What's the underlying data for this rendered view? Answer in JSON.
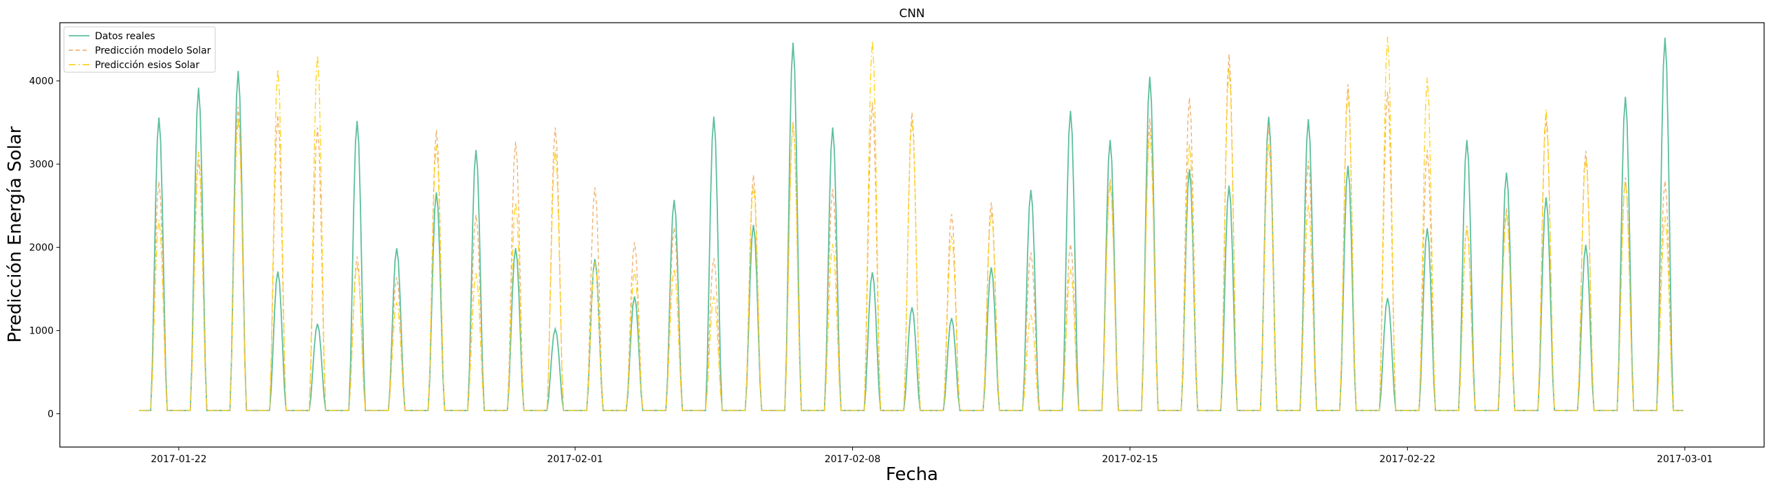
{
  "chart_data": {
    "type": "line",
    "title": "CNN",
    "xlabel": "Fecha",
    "ylabel": "Predicción Energía Solar",
    "xlim": [
      "2017-01-19",
      "2017-03-03"
    ],
    "ylim": [
      -400,
      4700
    ],
    "x_ticks": [
      "2017-01-22",
      "2017-02-01",
      "2017-02-08",
      "2017-02-15",
      "2017-02-22",
      "2017-03-01"
    ],
    "y_ticks": [
      0,
      1000,
      2000,
      3000,
      4000
    ],
    "grid": false,
    "legend_position": "top-left",
    "x_start": "2017-01-21",
    "x_step_days": 1,
    "series": [
      {
        "name": "Datos reales",
        "color": "#5bbf99",
        "style": "solid",
        "peaks": [
          3520,
          3880,
          4080,
          1670,
          1040,
          3480,
          1950,
          2620,
          3130,
          1950,
          980,
          1820,
          1370,
          2530,
          3530,
          2230,
          4420,
          3400,
          1660,
          1240,
          1110,
          1720,
          2650,
          3600,
          3250,
          4010,
          2900,
          2700,
          3530,
          3500,
          2940,
          1350,
          2190,
          3250,
          2860,
          2560,
          1990,
          3770,
          4480
        ]
      },
      {
        "name": "Predicción modelo Solar",
        "color": "#f0b070",
        "style": "dashed",
        "peaks": [
          2750,
          3020,
          3650,
          3550,
          3400,
          1850,
          1600,
          3370,
          2350,
          3230,
          3400,
          2680,
          2020,
          2200,
          1830,
          2830,
          3470,
          2660,
          3700,
          3580,
          2360,
          2500,
          1900,
          2000,
          2780,
          3510,
          3760,
          4280,
          3420,
          3000,
          3920,
          3830,
          3130,
          2220,
          2430,
          3520,
          3120,
          2800,
          2760
        ]
      },
      {
        "name": "Predicción esios Solar",
        "color": "#ffd21e",
        "style": "dashdot",
        "peaks": [
          2290,
          3110,
          3510,
          4100,
          4270,
          1750,
          1300,
          3190,
          1650,
          2500,
          3130,
          1780,
          1680,
          1700,
          1370,
          2700,
          3450,
          2000,
          4440,
          3500,
          2100,
          2380,
          1150,
          1700,
          2740,
          3350,
          3200,
          4120,
          3200,
          2470,
          3830,
          4490,
          4000,
          2190,
          2370,
          3620,
          3040,
          2760,
          2330
        ]
      }
    ]
  }
}
